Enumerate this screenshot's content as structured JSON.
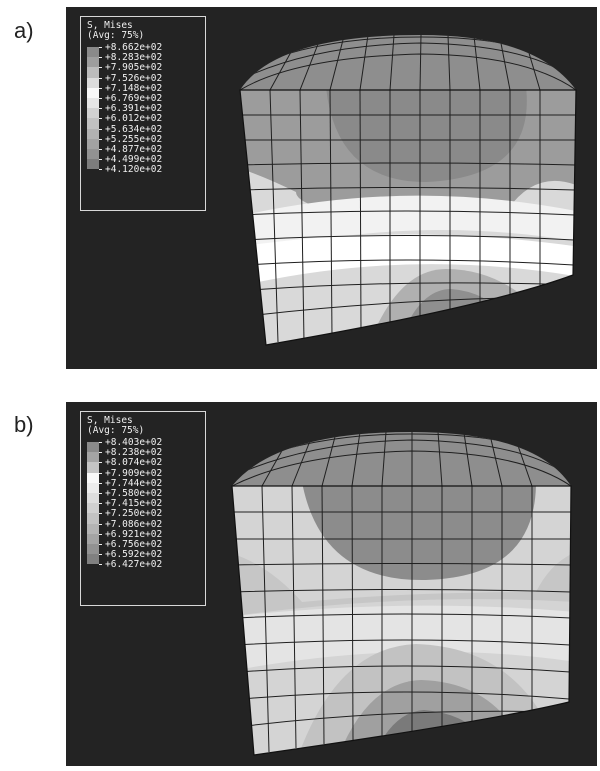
{
  "panels": [
    {
      "label": "a)",
      "legend": {
        "title": "S, Mises",
        "subtitle": "(Avg: 75%)",
        "values": [
          "+8.662e+02",
          "+8.283e+02",
          "+7.905e+02",
          "+7.526e+02",
          "+7.148e+02",
          "+6.769e+02",
          "+6.391e+02",
          "+6.012e+02",
          "+5.634e+02",
          "+5.255e+02",
          "+4.877e+02",
          "+4.499e+02",
          "+4.120e+02"
        ],
        "colors": [
          "#8a8a8a",
          "#9e9e9e",
          "#bcbcbc",
          "#dcdcdc",
          "#f8f8f8",
          "#e6e6e6",
          "#d2d2d2",
          "#c2c2c2",
          "#b2b2b2",
          "#a2a2a2",
          "#929292",
          "#7c7c7c",
          "#686868"
        ]
      }
    },
    {
      "label": "b)",
      "legend": {
        "title": "S, Mises",
        "subtitle": "(Avg: 75%)",
        "values": [
          "+8.403e+02",
          "+8.238e+02",
          "+8.074e+02",
          "+7.909e+02",
          "+7.744e+02",
          "+7.580e+02",
          "+7.415e+02",
          "+7.250e+02",
          "+7.086e+02",
          "+6.921e+02",
          "+6.756e+02",
          "+6.592e+02",
          "+6.427e+02"
        ],
        "colors": [
          "#8a8a8a",
          "#a4a4a4",
          "#c4c4c4",
          "#f8f8f8",
          "#ececec",
          "#dedede",
          "#d0d0d0",
          "#c2c2c2",
          "#b4b4b4",
          "#a4a4a4",
          "#929292",
          "#808080",
          "#6c6c6c"
        ]
      }
    }
  ]
}
